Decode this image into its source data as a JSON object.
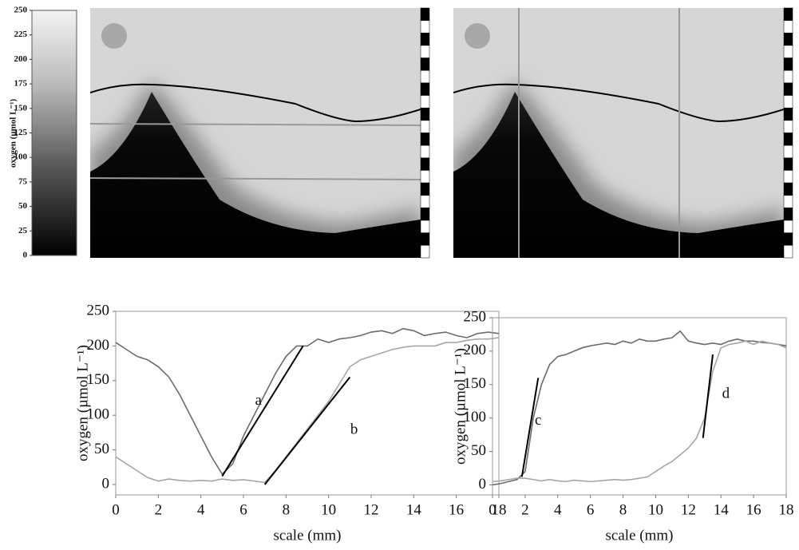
{
  "chart_data": [
    {
      "type": "colorbar",
      "ylabel": "oxygen (µmol L⁻¹)",
      "ylim": [
        0,
        250
      ],
      "yticks": [
        0,
        25,
        50,
        75,
        100,
        125,
        150,
        175,
        200,
        225,
        250
      ]
    },
    {
      "type": "line",
      "xlabel": "scale (mm)",
      "ylabel": "oxygen (µmol L⁻¹)",
      "xlim": [
        0,
        18
      ],
      "ylim": [
        -15,
        250
      ],
      "xticks": [
        0,
        2,
        4,
        6,
        8,
        10,
        12,
        14,
        16,
        18
      ],
      "yticks": [
        0,
        50,
        100,
        150,
        200,
        250
      ],
      "x": [
        0,
        0.5,
        1,
        1.5,
        2,
        2.5,
        3,
        3.5,
        4,
        4.5,
        5,
        5.5,
        6,
        6.5,
        7,
        7.5,
        8,
        8.5,
        9,
        9.5,
        10,
        10.5,
        11,
        11.5,
        12,
        12.5,
        13,
        13.5,
        14,
        14.5,
        15,
        15.5,
        16,
        16.5,
        17,
        17.5,
        18
      ],
      "series": [
        {
          "color": "#6b6b6b",
          "values": [
            205,
            195,
            185,
            180,
            170,
            155,
            130,
            100,
            70,
            40,
            15,
            30,
            70,
            100,
            130,
            160,
            185,
            200,
            200,
            210,
            205,
            210,
            212,
            215,
            220,
            222,
            218,
            225,
            222,
            215,
            218,
            220,
            215,
            212,
            218,
            220,
            218
          ]
        },
        {
          "color": "#a6a6a6",
          "values": [
            40,
            30,
            20,
            10,
            5,
            8,
            6,
            5,
            6,
            5,
            8,
            6,
            7,
            5,
            3,
            20,
            40,
            60,
            80,
            100,
            120,
            145,
            170,
            180,
            185,
            190,
            195,
            198,
            200,
            200,
            200,
            205,
            205,
            208,
            210,
            210,
            212
          ]
        }
      ],
      "fits": [
        {
          "x": [
            5,
            8.8
          ],
          "values": [
            12,
            200
          ]
        },
        {
          "x": [
            7,
            11
          ],
          "values": [
            0,
            155
          ]
        }
      ],
      "annotations": [
        {
          "text": "a",
          "x": 6.7,
          "y": 120
        },
        {
          "text": "b",
          "x": 11.2,
          "y": 78
        }
      ]
    },
    {
      "type": "line",
      "xlabel": "scale (mm)",
      "ylabel": "oxygen (µmol L⁻¹)",
      "xlim": [
        0,
        18
      ],
      "ylim": [
        -15,
        250
      ],
      "xticks": [
        0,
        2,
        4,
        6,
        8,
        10,
        12,
        14,
        16,
        18
      ],
      "yticks": [
        0,
        50,
        100,
        150,
        200,
        250
      ],
      "x": [
        0,
        0.5,
        1,
        1.5,
        2,
        2.5,
        3,
        3.5,
        4,
        4.5,
        5,
        5.5,
        6,
        6.5,
        7,
        7.5,
        8,
        8.5,
        9,
        9.5,
        10,
        10.5,
        11,
        11.5,
        12,
        12.5,
        13,
        13.5,
        14,
        14.5,
        15,
        15.5,
        16,
        16.5,
        17,
        17.5,
        18
      ],
      "series": [
        {
          "color": "#6b6b6b",
          "values": [
            0,
            2,
            5,
            8,
            20,
            100,
            150,
            180,
            192,
            195,
            200,
            205,
            208,
            210,
            212,
            210,
            215,
            212,
            218,
            215,
            215,
            218,
            220,
            230,
            215,
            212,
            210,
            212,
            210,
            215,
            218,
            215,
            215,
            213,
            212,
            210,
            208
          ]
        },
        {
          "color": "#a6a6a6",
          "values": [
            5,
            6,
            8,
            10,
            10,
            8,
            6,
            8,
            6,
            5,
            7,
            6,
            5,
            6,
            7,
            8,
            7,
            8,
            10,
            12,
            20,
            28,
            35,
            45,
            55,
            70,
            100,
            170,
            205,
            210,
            212,
            215,
            210,
            215,
            212,
            210,
            205
          ]
        }
      ],
      "fits": [
        {
          "x": [
            1.8,
            2.8
          ],
          "values": [
            12,
            160
          ]
        },
        {
          "x": [
            12.9,
            13.5
          ],
          "values": [
            70,
            195
          ]
        }
      ],
      "annotations": [
        {
          "text": "c",
          "x": 2.8,
          "y": 95
        },
        {
          "text": "d",
          "x": 14.3,
          "y": 135
        }
      ]
    }
  ]
}
